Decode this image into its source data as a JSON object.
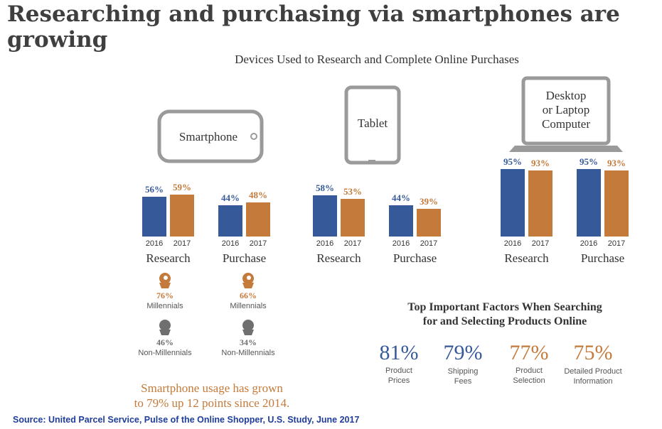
{
  "headline": "Researching and purchasing via smartphones are growing",
  "chart_data": {
    "type": "bar",
    "title": "Devices Used to Research and Complete Online Purchases",
    "groups": [
      {
        "device": "Smartphone",
        "activity": "Research",
        "labels": [
          "2016",
          "2017"
        ],
        "values": [
          56,
          59
        ]
      },
      {
        "device": "Smartphone",
        "activity": "Purchase",
        "labels": [
          "2016",
          "2017"
        ],
        "values": [
          44,
          48
        ]
      },
      {
        "device": "Tablet",
        "activity": "Research",
        "labels": [
          "2016",
          "2017"
        ],
        "values": [
          58,
          53
        ]
      },
      {
        "device": "Tablet",
        "activity": "Purchase",
        "labels": [
          "2016",
          "2017"
        ],
        "values": [
          44,
          39
        ]
      },
      {
        "device": "Desktop or Laptop Computer",
        "activity": "Research",
        "labels": [
          "2016",
          "2017"
        ],
        "values": [
          95,
          93
        ]
      },
      {
        "device": "Desktop or Laptop Computer",
        "activity": "Purchase",
        "labels": [
          "2016",
          "2017"
        ],
        "values": [
          95,
          93
        ]
      }
    ],
    "colors": {
      "2016": "#36599a",
      "2017": "#c47a3a"
    }
  },
  "devices": {
    "smartphone": "Smartphone",
    "tablet": "Tablet",
    "computer_lines": [
      "Desktop",
      "or Laptop",
      "Computer"
    ]
  },
  "generations": [
    {
      "activity": "Research",
      "millennials_pct": "76%",
      "millennials_label": "Millennials",
      "non_pct": "46%",
      "non_label": "Non-Millennials"
    },
    {
      "activity": "Purchase",
      "millennials_pct": "66%",
      "millennials_label": "Millennials",
      "non_pct": "34%",
      "non_label": "Non-Millennials"
    }
  ],
  "callout": [
    "Smartphone usage has grown",
    "to 79% up 12 points since 2014."
  ],
  "factors": {
    "title": [
      "Top Important Factors When Searching",
      "for and Selecting Products Online"
    ],
    "items": [
      {
        "value": "81%",
        "label_lines": [
          "Product",
          "Prices"
        ],
        "color": "#36599a"
      },
      {
        "value": "79%",
        "label_lines": [
          "Shipping",
          "Fees"
        ],
        "color": "#36599a"
      },
      {
        "value": "77%",
        "label_lines": [
          "Product",
          "Selection"
        ],
        "color": "#c47a3a"
      },
      {
        "value": "75%",
        "label_lines": [
          "Detailed Product",
          "Information"
        ],
        "color": "#c47a3a"
      }
    ]
  },
  "source": "Source: United Parcel Service, Pulse of the Online Shopper, U.S. Study, June 2017"
}
